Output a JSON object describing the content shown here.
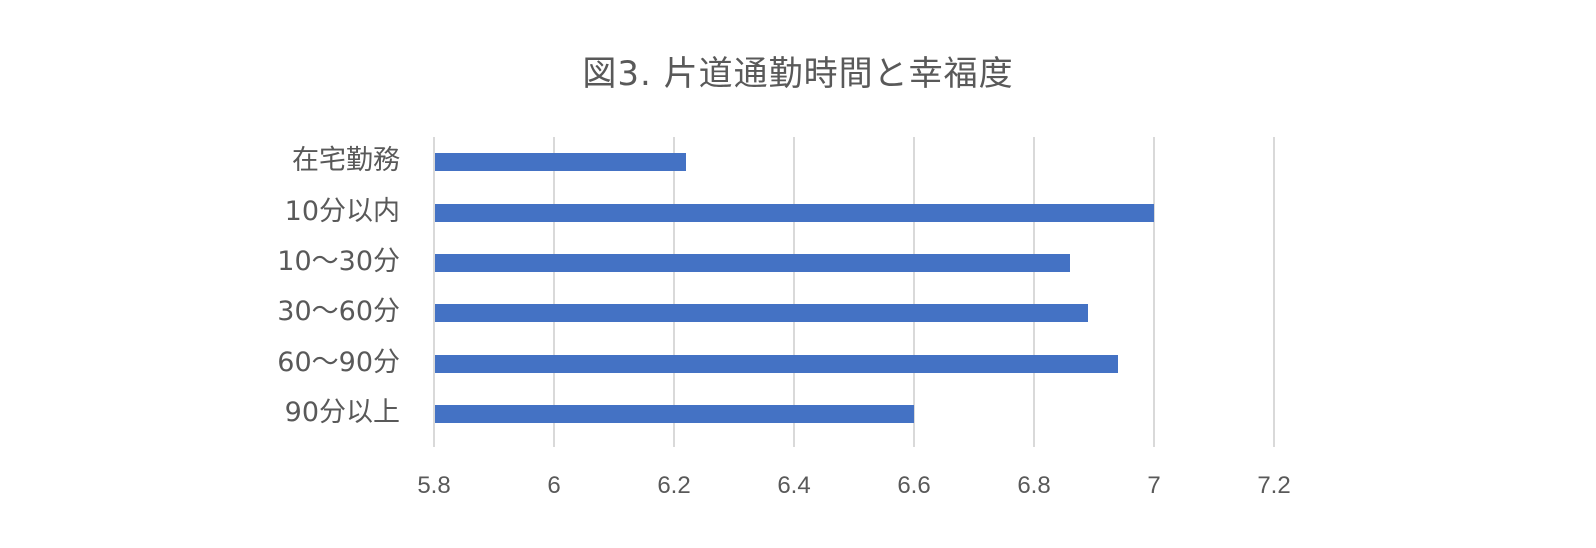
{
  "chart_data": {
    "type": "bar",
    "orientation": "horizontal",
    "title": "図3. 片道通勤時間と幸福度",
    "xlabel": "",
    "ylabel": "",
    "categories": [
      "在宅勤務",
      "10分以内",
      "10〜30分",
      "30〜60分",
      "60〜90分",
      "90分以上"
    ],
    "values": [
      6.22,
      7.0,
      6.86,
      6.89,
      6.94,
      6.6
    ],
    "xlim": [
      5.8,
      7.2
    ],
    "xticks": [
      "5.8",
      "6",
      "6.2",
      "6.4",
      "6.6",
      "6.8",
      "7",
      "7.2"
    ],
    "grid": "vertical",
    "legend": "none",
    "bar_color": "#4472c4"
  },
  "title": "図3. 片道通勤時間と幸福度",
  "categories": [
    "在宅勤務",
    "10分以内",
    "10〜30分",
    "30〜60分",
    "60〜90分",
    "90分以上"
  ],
  "xticks": [
    "5.8",
    "6",
    "6.2",
    "6.4",
    "6.6",
    "6.8",
    "7",
    "7.2"
  ]
}
